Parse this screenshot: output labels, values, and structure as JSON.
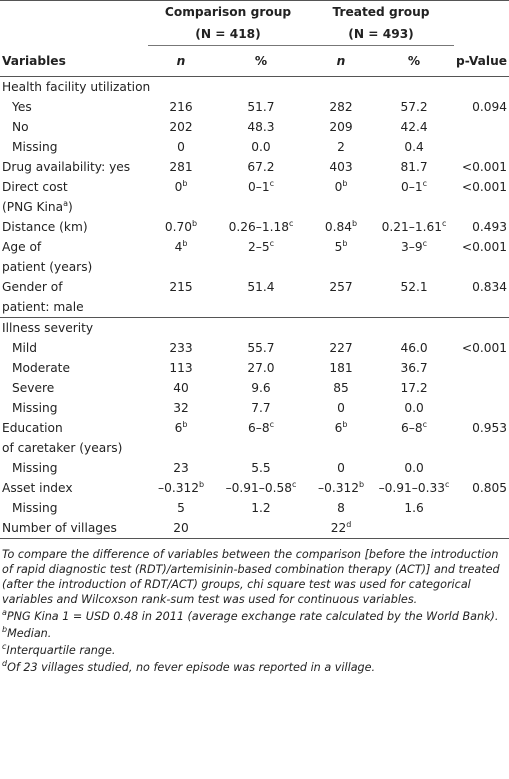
{
  "table": {
    "group_headers": [
      {
        "label": "Comparison group",
        "n": "(N = 418)"
      },
      {
        "label": "Treated group",
        "n": "(N = 493)"
      }
    ],
    "columns": [
      "Variables",
      "n",
      "%",
      "n",
      "%",
      "p-Value"
    ],
    "sections": [
      {
        "rows": [
          {
            "label": "Health facility utilization",
            "cells": [
              null,
              null,
              null,
              null,
              null
            ],
            "children": [
              {
                "label": "Yes",
                "cells": [
                  "216",
                  "51.7",
                  "282",
                  "57.2",
                  "0.094"
                ]
              },
              {
                "label": "No",
                "cells": [
                  "202",
                  "48.3",
                  "209",
                  "42.4",
                  null
                ]
              },
              {
                "label": "Missing",
                "cells": [
                  "0",
                  "0.0",
                  "2",
                  "0.4",
                  null
                ]
              }
            ]
          },
          {
            "label": "Drug availability: yes",
            "cells": [
              "281",
              "67.2",
              "403",
              "81.7",
              "<0.001"
            ]
          },
          {
            "label": [
              "Direct cost",
              {
                "text": "(PNG Kina",
                "sup": "a",
                "tail": ")"
              }
            ],
            "cells": [
              {
                "text": "0",
                "sup": "b"
              },
              {
                "text": "0–1",
                "sup": "c"
              },
              {
                "text": "0",
                "sup": "b"
              },
              {
                "text": "0–1",
                "sup": "c"
              },
              "<0.001"
            ]
          },
          {
            "label": "Distance (km)",
            "cells": [
              {
                "text": "0.70",
                "sup": "b"
              },
              {
                "text": "0.26–1.18",
                "sup": "c"
              },
              {
                "text": "0.84",
                "sup": "b"
              },
              {
                "text": "0.21–1.61",
                "sup": "c"
              },
              "0.493"
            ]
          },
          {
            "label": [
              "Age of",
              "patient (years)"
            ],
            "cells": [
              {
                "text": "4",
                "sup": "b"
              },
              {
                "text": "2–5",
                "sup": "c"
              },
              {
                "text": "5",
                "sup": "b"
              },
              {
                "text": "3–9",
                "sup": "c"
              },
              "<0.001"
            ]
          },
          {
            "label": [
              "Gender of",
              "patient: male"
            ],
            "cells": [
              "215",
              "51.4",
              "257",
              "52.1",
              "0.834"
            ]
          }
        ]
      },
      {
        "rows": [
          {
            "label": "Illness severity",
            "cells": [
              null,
              null,
              null,
              null,
              null
            ],
            "children": [
              {
                "label": "Mild",
                "cells": [
                  "233",
                  "55.7",
                  "227",
                  "46.0",
                  "<0.001"
                ]
              },
              {
                "label": "Moderate",
                "cells": [
                  "113",
                  "27.0",
                  "181",
                  "36.7",
                  null
                ]
              },
              {
                "label": "Severe",
                "cells": [
                  "40",
                  "9.6",
                  "85",
                  "17.2",
                  null
                ]
              },
              {
                "label": "Missing",
                "cells": [
                  "32",
                  "7.7",
                  "0",
                  "0.0",
                  null
                ]
              }
            ]
          },
          {
            "label": [
              "Education",
              "of caretaker (years)"
            ],
            "cells": [
              {
                "text": "6",
                "sup": "b"
              },
              {
                "text": "6–8",
                "sup": "c"
              },
              {
                "text": "6",
                "sup": "b"
              },
              {
                "text": "6–8",
                "sup": "c"
              },
              "0.953"
            ],
            "children": [
              {
                "label": "Missing",
                "cells": [
                  "23",
                  "5.5",
                  "0",
                  "0.0",
                  null
                ]
              }
            ]
          },
          {
            "label": "Asset index",
            "cells": [
              {
                "text": "–0.312",
                "sup": "b"
              },
              {
                "text": "–0.91–0.58",
                "sup": "c"
              },
              {
                "text": "–0.312",
                "sup": "b"
              },
              {
                "text": "–0.91–0.33",
                "sup": "c"
              },
              "0.805"
            ],
            "children": [
              {
                "label": "Missing",
                "cells": [
                  "5",
                  "1.2",
                  "8",
                  "1.6",
                  null
                ]
              }
            ]
          },
          {
            "label": "Number of villages",
            "cells": [
              "20",
              null,
              {
                "text": "22",
                "sup": "d"
              },
              null,
              null
            ]
          }
        ]
      }
    ]
  },
  "footnotes": [
    "To compare the difference of variables between the comparison [before the introduction of rapid diagnostic test (RDT)/artemisinin-based combination therapy (ACT)] and treated (after the introduction of RDT/ACT) groups, chi square test was used for categorical variables and Wilcoxson rank-sum test was used for continuous variables.",
    {
      "pre": "a",
      "text": "PNG Kina 1 = USD 0.48 in 2011 (average exchange rate calculated by the World Bank)."
    },
    {
      "pre": "b",
      "text": "Median."
    },
    {
      "pre": "c",
      "text": "Interquartile range."
    },
    {
      "pre": "d",
      "text": "Of 23 villages studied, no fever episode was reported in a village."
    }
  ]
}
